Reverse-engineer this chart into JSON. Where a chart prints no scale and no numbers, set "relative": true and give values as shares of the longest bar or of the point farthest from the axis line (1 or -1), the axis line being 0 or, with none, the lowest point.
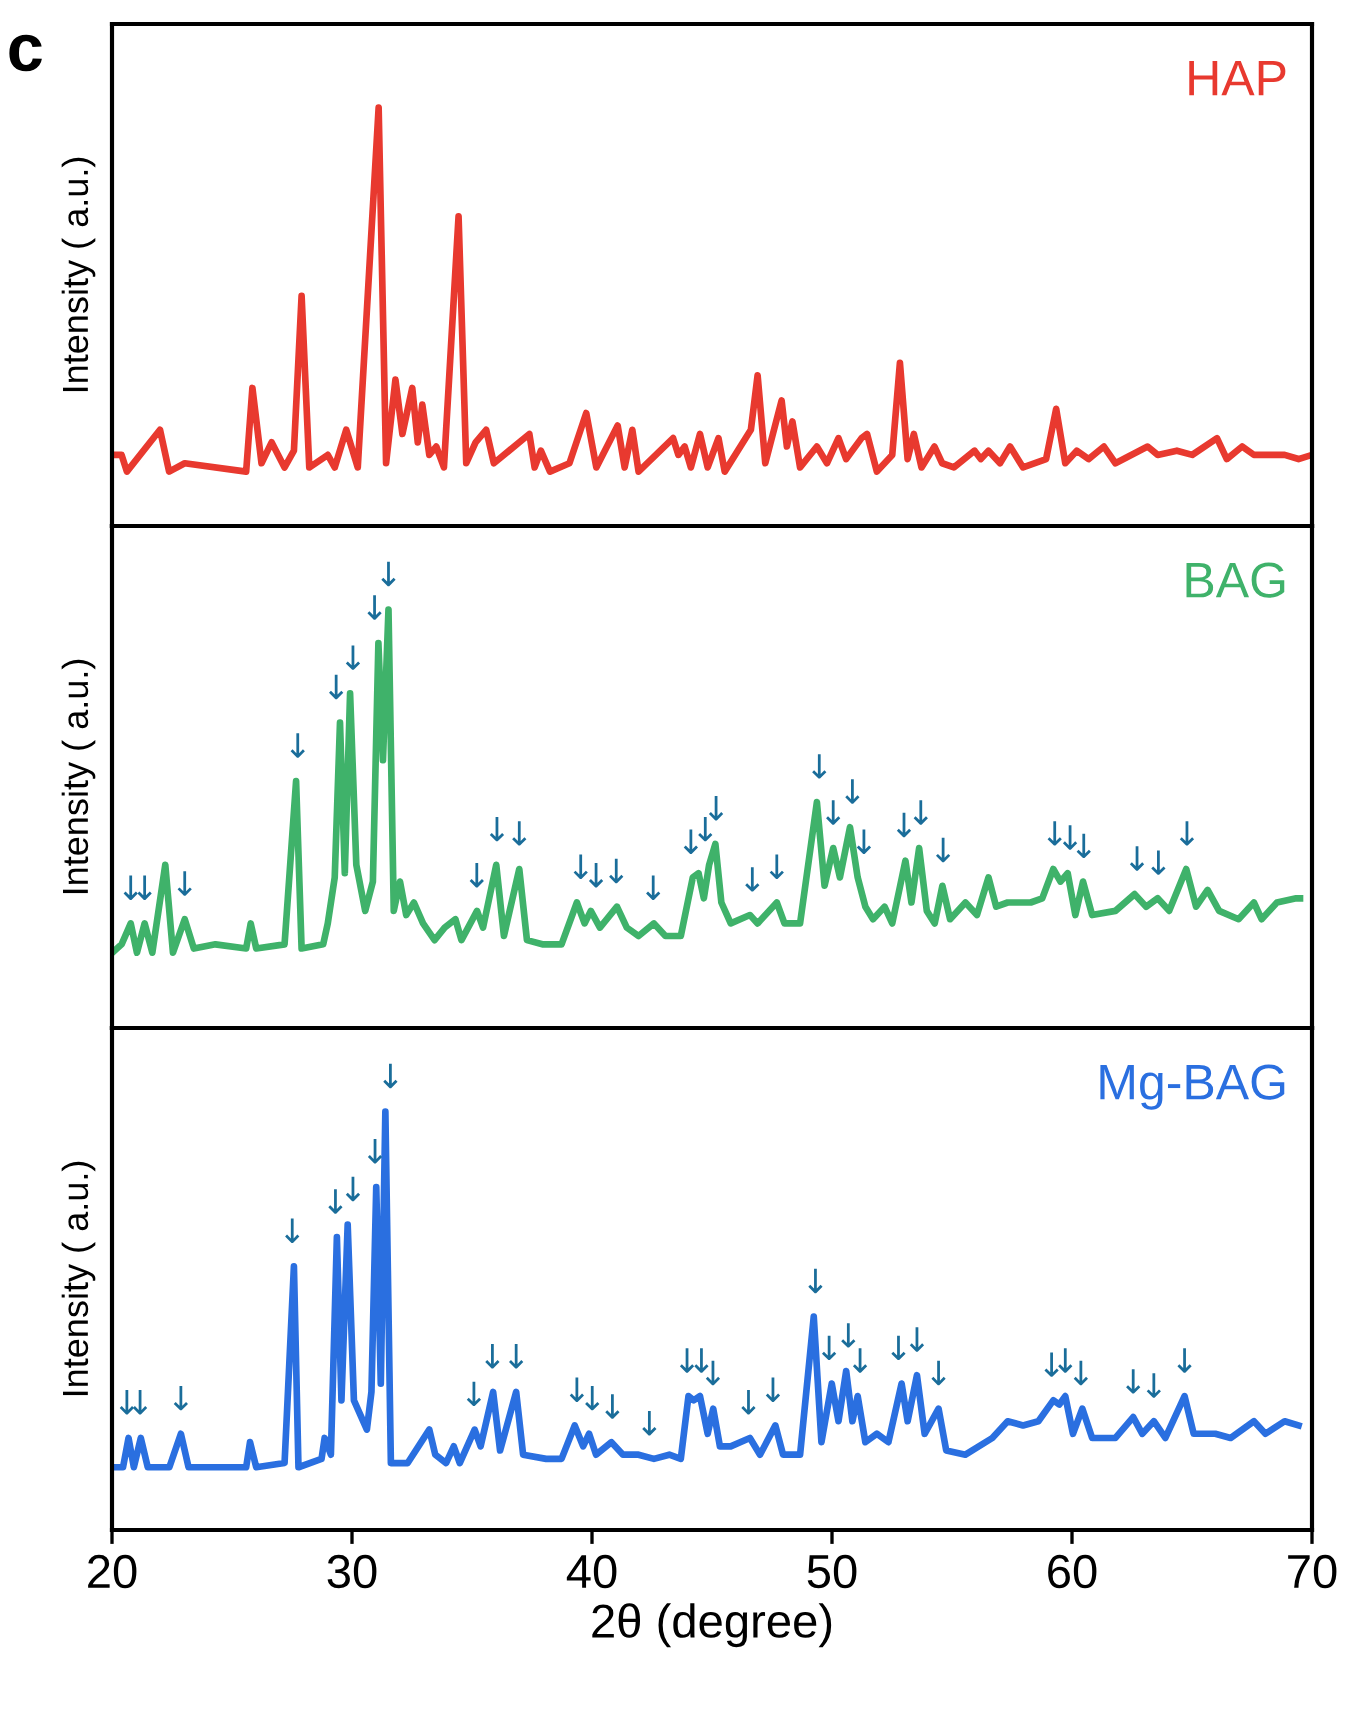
{
  "chart_data": [
    {
      "type": "line",
      "relative": true,
      "ylabel": "Intensity ( a.u.)",
      "xlim": [
        20,
        70
      ],
      "tick_labels": false,
      "annotations": [
        "c"
      ],
      "series": [
        {
          "name": "HAP",
          "color": "#e8392f",
          "x": [
            20.0,
            20.4,
            20.62,
            22.0,
            22.38,
            23.03,
            25.59,
            25.85,
            26.23,
            26.65,
            27.19,
            27.58,
            27.9,
            28.22,
            28.99,
            29.28,
            29.76,
            30.24,
            31.11,
            31.42,
            31.81,
            32.1,
            32.51,
            32.74,
            32.93,
            33.22,
            33.51,
            33.83,
            34.44,
            34.76,
            35.15,
            35.59,
            35.91,
            37.39,
            37.61,
            37.87,
            38.25,
            39.06,
            39.76,
            40.18,
            41.07,
            41.36,
            41.68,
            41.94,
            43.38,
            43.6,
            43.86,
            44.12,
            44.5,
            44.82,
            45.27,
            45.53,
            46.62,
            46.9,
            47.22,
            47.9,
            48.12,
            48.35,
            48.67,
            49.37,
            49.79,
            50.27,
            50.59,
            51.23,
            51.46,
            51.87,
            52.51,
            52.83,
            53.15,
            53.41,
            53.73,
            54.27,
            54.59,
            55.08,
            55.94,
            56.2,
            56.52,
            57.0,
            57.42,
            57.96,
            58.92,
            59.34,
            59.72,
            60.2,
            60.69,
            61.33,
            61.81,
            63.15,
            63.57,
            64.37,
            65.01,
            66.04,
            66.45,
            67.09,
            67.58,
            68.86,
            69.44,
            70.0
          ],
          "values": [
            0.17,
            0.17,
            0.13,
            0.23,
            0.13,
            0.15,
            0.13,
            0.33,
            0.15,
            0.2,
            0.14,
            0.18,
            0.55,
            0.14,
            0.17,
            0.14,
            0.23,
            0.14,
            1.0,
            0.15,
            0.35,
            0.22,
            0.33,
            0.2,
            0.29,
            0.17,
            0.19,
            0.14,
            0.74,
            0.15,
            0.2,
            0.23,
            0.15,
            0.22,
            0.14,
            0.18,
            0.13,
            0.15,
            0.27,
            0.14,
            0.24,
            0.14,
            0.23,
            0.13,
            0.21,
            0.17,
            0.19,
            0.14,
            0.22,
            0.14,
            0.21,
            0.13,
            0.23,
            0.36,
            0.15,
            0.3,
            0.19,
            0.25,
            0.14,
            0.19,
            0.15,
            0.21,
            0.16,
            0.21,
            0.22,
            0.13,
            0.17,
            0.39,
            0.16,
            0.22,
            0.14,
            0.19,
            0.15,
            0.14,
            0.18,
            0.16,
            0.18,
            0.15,
            0.19,
            0.14,
            0.16,
            0.28,
            0.15,
            0.18,
            0.16,
            0.19,
            0.15,
            0.19,
            0.17,
            0.18,
            0.17,
            0.21,
            0.16,
            0.19,
            0.17,
            0.17,
            0.16,
            0.17
          ]
        }
      ]
    },
    {
      "type": "line",
      "relative": true,
      "ylabel": "Intensity ( a.u.)",
      "xlim": [
        20,
        70
      ],
      "tick_labels": false,
      "series": [
        {
          "name": "BAG",
          "color": "#3fb26a",
          "x": [
            20.01,
            20.4,
            20.78,
            21.04,
            21.36,
            21.68,
            22.22,
            22.54,
            23.03,
            23.41,
            24.31,
            25.59,
            25.78,
            26.01,
            27.19,
            27.67,
            27.9,
            28.8,
            28.99,
            29.28,
            29.5,
            29.7,
            29.92,
            30.18,
            30.55,
            30.87,
            31.1,
            31.29,
            31.52,
            31.74,
            32.0,
            32.26,
            32.58,
            32.96,
            33.44,
            33.86,
            34.31,
            34.56,
            35.21,
            35.46,
            36.01,
            36.33,
            36.97,
            37.29,
            37.93,
            38.73,
            39.37,
            39.69,
            39.95,
            40.33,
            41.04,
            41.45,
            41.94,
            42.58,
            43.06,
            43.7,
            44.2,
            44.44,
            44.66,
            44.88,
            45.14,
            45.39,
            45.78,
            46.58,
            46.9,
            47.7,
            48.02,
            48.67,
            49.37,
            49.69,
            50.05,
            50.33,
            50.75,
            51.07,
            51.39,
            51.71,
            52.19,
            52.51,
            53.06,
            53.31,
            53.63,
            53.95,
            54.28,
            54.6,
            54.92,
            55.56,
            56.04,
            56.52,
            56.84,
            57.32,
            58.28,
            58.76,
            59.22,
            59.52,
            59.82,
            60.14,
            60.46,
            60.84,
            61.81,
            62.61,
            63.09,
            63.57,
            64.05,
            64.76,
            65.17,
            65.65,
            66.13,
            66.94,
            67.58,
            67.9,
            68.54,
            69.34,
            69.5
          ],
          "values": [
            0.18,
            0.2,
            0.25,
            0.18,
            0.25,
            0.18,
            0.39,
            0.18,
            0.26,
            0.19,
            0.2,
            0.19,
            0.25,
            0.19,
            0.2,
            0.59,
            0.19,
            0.2,
            0.25,
            0.36,
            0.73,
            0.37,
            0.8,
            0.39,
            0.28,
            0.35,
            0.92,
            0.64,
            1.0,
            0.28,
            0.35,
            0.27,
            0.3,
            0.25,
            0.21,
            0.24,
            0.26,
            0.21,
            0.28,
            0.24,
            0.39,
            0.22,
            0.38,
            0.21,
            0.2,
            0.2,
            0.3,
            0.25,
            0.28,
            0.24,
            0.29,
            0.24,
            0.22,
            0.25,
            0.22,
            0.22,
            0.36,
            0.37,
            0.31,
            0.39,
            0.44,
            0.3,
            0.25,
            0.27,
            0.25,
            0.3,
            0.25,
            0.25,
            0.54,
            0.34,
            0.43,
            0.36,
            0.48,
            0.36,
            0.29,
            0.26,
            0.29,
            0.25,
            0.4,
            0.3,
            0.43,
            0.28,
            0.25,
            0.34,
            0.26,
            0.3,
            0.27,
            0.36,
            0.29,
            0.3,
            0.3,
            0.31,
            0.38,
            0.35,
            0.37,
            0.27,
            0.35,
            0.27,
            0.28,
            0.32,
            0.29,
            0.31,
            0.28,
            0.38,
            0.29,
            0.33,
            0.28,
            0.26,
            0.3,
            0.26,
            0.3,
            0.31,
            0.31
          ]
        }
      ],
      "annotations": [
        {
          "text": "↓",
          "x": 20.78,
          "y": 0.25
        },
        {
          "text": "↓",
          "x": 21.36,
          "y": 0.25
        },
        {
          "text": "↓",
          "x": 23.03,
          "y": 0.26
        },
        {
          "text": "↓",
          "x": 27.74,
          "y": 0.59
        },
        {
          "text": "↓",
          "x": 29.34,
          "y": 0.73
        },
        {
          "text": "↓",
          "x": 30.04,
          "y": 0.8
        },
        {
          "text": "↓",
          "x": 30.94,
          "y": 0.92
        },
        {
          "text": "↓",
          "x": 31.52,
          "y": 1.0
        },
        {
          "text": "↓",
          "x": 35.2,
          "y": 0.28
        },
        {
          "text": "↓",
          "x": 36.04,
          "y": 0.39
        },
        {
          "text": "↓",
          "x": 36.97,
          "y": 0.38
        },
        {
          "text": "↓",
          "x": 39.53,
          "y": 0.3
        },
        {
          "text": "↓",
          "x": 40.17,
          "y": 0.28
        },
        {
          "text": "↓",
          "x": 41.01,
          "y": 0.29
        },
        {
          "text": "↓",
          "x": 42.55,
          "y": 0.25
        },
        {
          "text": "↓",
          "x": 44.12,
          "y": 0.36
        },
        {
          "text": "↓",
          "x": 44.72,
          "y": 0.39
        },
        {
          "text": "↓",
          "x": 45.17,
          "y": 0.44
        },
        {
          "text": "↓",
          "x": 46.68,
          "y": 0.27
        },
        {
          "text": "↓",
          "x": 47.7,
          "y": 0.3
        },
        {
          "text": "↓",
          "x": 49.47,
          "y": 0.54
        },
        {
          "text": "↓",
          "x": 50.05,
          "y": 0.43
        },
        {
          "text": "↓",
          "x": 50.85,
          "y": 0.48
        },
        {
          "text": "↓",
          "x": 51.33,
          "y": 0.36
        },
        {
          "text": "↓",
          "x": 53.0,
          "y": 0.4
        },
        {
          "text": "↓",
          "x": 53.7,
          "y": 0.43
        },
        {
          "text": "↓",
          "x": 54.63,
          "y": 0.34
        },
        {
          "text": "↓",
          "x": 59.28,
          "y": 0.38
        },
        {
          "text": "↓",
          "x": 59.92,
          "y": 0.37
        },
        {
          "text": "↓",
          "x": 60.49,
          "y": 0.35
        },
        {
          "text": "↓",
          "x": 62.71,
          "y": 0.32
        },
        {
          "text": "↓",
          "x": 63.6,
          "y": 0.31
        },
        {
          "text": "↓",
          "x": 64.79,
          "y": 0.38
        }
      ]
    },
    {
      "type": "line",
      "relative": true,
      "ylabel": "Intensity ( a.u.)",
      "xlabel": "2θ (degree)",
      "xlim": [
        20,
        70
      ],
      "xticks": [
        20,
        30,
        40,
        50,
        60,
        70
      ],
      "tick_labels": "x",
      "series": [
        {
          "name": "Mg-BAG",
          "color": "#2a6fe0",
          "x": [
            20.01,
            20.46,
            20.69,
            20.91,
            21.2,
            21.49,
            22.39,
            22.87,
            23.19,
            25.59,
            25.75,
            26.01,
            27.19,
            27.58,
            27.77,
            28.73,
            28.86,
            29.12,
            29.37,
            29.56,
            29.82,
            30.08,
            30.62,
            30.81,
            31.01,
            31.2,
            31.39,
            31.62,
            32.32,
            33.22,
            33.47,
            33.92,
            34.24,
            34.49,
            35.11,
            35.36,
            35.88,
            36.17,
            36.84,
            37.13,
            38.09,
            38.73,
            39.28,
            39.63,
            39.88,
            40.17,
            40.81,
            41.29,
            41.94,
            42.58,
            43.22,
            43.7,
            44.02,
            44.24,
            44.5,
            44.82,
            45.05,
            45.33,
            45.78,
            46.58,
            47.0,
            47.64,
            47.96,
            48.67,
            49.24,
            49.56,
            49.99,
            50.27,
            50.59,
            50.85,
            51.07,
            51.39,
            51.87,
            52.35,
            52.9,
            53.15,
            53.54,
            53.86,
            54.44,
            54.76,
            55.56,
            56.68,
            57.32,
            57.96,
            58.6,
            59.22,
            59.47,
            59.72,
            60.04,
            60.43,
            60.84,
            61.81,
            62.55,
            62.93,
            63.41,
            63.89,
            64.69,
            65.07,
            65.97,
            66.61,
            67.58,
            68.06,
            68.86,
            69.44
          ],
          "values": [
            0.15,
            0.15,
            0.22,
            0.15,
            0.22,
            0.15,
            0.15,
            0.23,
            0.15,
            0.15,
            0.21,
            0.15,
            0.16,
            0.63,
            0.15,
            0.17,
            0.22,
            0.18,
            0.7,
            0.31,
            0.73,
            0.31,
            0.24,
            0.33,
            0.82,
            0.35,
            1.0,
            0.16,
            0.16,
            0.24,
            0.18,
            0.16,
            0.2,
            0.16,
            0.24,
            0.2,
            0.33,
            0.19,
            0.33,
            0.18,
            0.17,
            0.17,
            0.25,
            0.2,
            0.23,
            0.18,
            0.21,
            0.18,
            0.18,
            0.17,
            0.18,
            0.17,
            0.32,
            0.31,
            0.32,
            0.23,
            0.29,
            0.2,
            0.2,
            0.22,
            0.18,
            0.25,
            0.18,
            0.18,
            0.51,
            0.21,
            0.35,
            0.26,
            0.38,
            0.26,
            0.32,
            0.21,
            0.23,
            0.21,
            0.35,
            0.26,
            0.37,
            0.23,
            0.29,
            0.19,
            0.18,
            0.22,
            0.26,
            0.25,
            0.26,
            0.31,
            0.3,
            0.32,
            0.23,
            0.29,
            0.22,
            0.22,
            0.27,
            0.23,
            0.26,
            0.22,
            0.32,
            0.23,
            0.23,
            0.22,
            0.26,
            0.23,
            0.26,
            0.25
          ]
        }
      ],
      "annotations": [
        {
          "text": "↓",
          "x": 20.62,
          "y": 0.22
        },
        {
          "text": "↓",
          "x": 21.17,
          "y": 0.22
        },
        {
          "text": "↓",
          "x": 22.87,
          "y": 0.23
        },
        {
          "text": "↓",
          "x": 27.51,
          "y": 0.63
        },
        {
          "text": "↓",
          "x": 29.31,
          "y": 0.7
        },
        {
          "text": "↓",
          "x": 30.04,
          "y": 0.73
        },
        {
          "text": "↓",
          "x": 30.96,
          "y": 0.82
        },
        {
          "text": "↓",
          "x": 31.6,
          "y": 1.0
        },
        {
          "text": "↓",
          "x": 35.08,
          "y": 0.24
        },
        {
          "text": "↓",
          "x": 35.85,
          "y": 0.33
        },
        {
          "text": "↓",
          "x": 36.84,
          "y": 0.33
        },
        {
          "text": "↓",
          "x": 39.37,
          "y": 0.25
        },
        {
          "text": "↓",
          "x": 40.01,
          "y": 0.23
        },
        {
          "text": "↓",
          "x": 40.85,
          "y": 0.21
        },
        {
          "text": "↓",
          "x": 42.39,
          "y": 0.17
        },
        {
          "text": "↓",
          "x": 43.96,
          "y": 0.32
        },
        {
          "text": "↓",
          "x": 44.56,
          "y": 0.32
        },
        {
          "text": "↓",
          "x": 45.04,
          "y": 0.29
        },
        {
          "text": "↓",
          "x": 46.52,
          "y": 0.22
        },
        {
          "text": "↓",
          "x": 47.54,
          "y": 0.25
        },
        {
          "text": "↓",
          "x": 49.31,
          "y": 0.51
        },
        {
          "text": "↓",
          "x": 49.88,
          "y": 0.35
        },
        {
          "text": "↓",
          "x": 50.68,
          "y": 0.38
        },
        {
          "text": "↓",
          "x": 51.17,
          "y": 0.32
        },
        {
          "text": "↓",
          "x": 52.77,
          "y": 0.35
        },
        {
          "text": "↓",
          "x": 53.54,
          "y": 0.37
        },
        {
          "text": "↓",
          "x": 54.44,
          "y": 0.29
        },
        {
          "text": "↓",
          "x": 59.15,
          "y": 0.31
        },
        {
          "text": "↓",
          "x": 59.72,
          "y": 0.32
        },
        {
          "text": "↓",
          "x": 60.37,
          "y": 0.29
        },
        {
          "text": "↓",
          "x": 62.55,
          "y": 0.27
        },
        {
          "text": "↓",
          "x": 63.41,
          "y": 0.26
        },
        {
          "text": "↓",
          "x": 64.69,
          "y": 0.32
        }
      ]
    }
  ]
}
